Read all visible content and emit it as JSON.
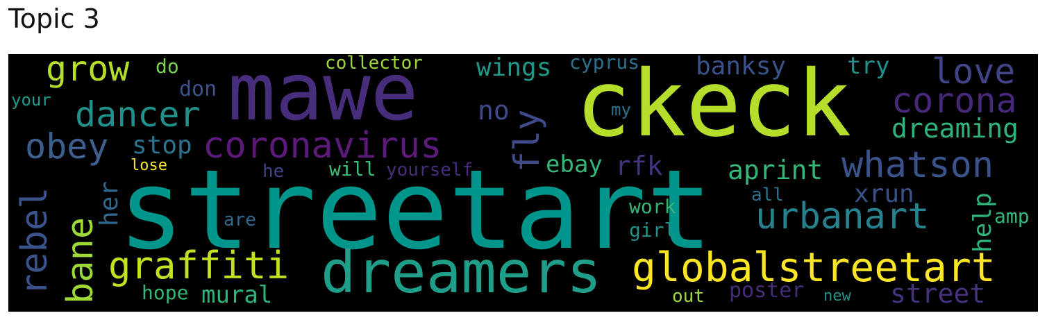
{
  "title": "Topic 3",
  "words": {
    "streetart": {
      "text": "streetart",
      "color": "#00968c"
    },
    "ckeck": {
      "text": "ckeck",
      "color": "#b5de2b"
    },
    "mawe": {
      "text": "mawe",
      "color": "#472d7b"
    },
    "dreamers": {
      "text": "dreamers",
      "color": "#1f9e89"
    },
    "globalstreetart": {
      "text": "globalstreetart",
      "color": "#fde725"
    },
    "coronavirus": {
      "text": "coronavirus",
      "color": "#5c1a7a"
    },
    "graffiti": {
      "text": "graffiti",
      "color": "#c5e021"
    },
    "urbanart": {
      "text": "urbanart",
      "color": "#26828e"
    },
    "whatson": {
      "text": "whatson",
      "color": "#3b528b"
    },
    "dancer": {
      "text": "dancer",
      "color": "#21918c"
    },
    "grow": {
      "text": "grow",
      "color": "#b5de2b"
    },
    "obey": {
      "text": "obey",
      "color": "#3e5f8e"
    },
    "corona": {
      "text": "corona",
      "color": "#482878"
    },
    "love": {
      "text": "love",
      "color": "#414487"
    },
    "dreaming": {
      "text": "dreaming",
      "color": "#2fb47c"
    },
    "aprint": {
      "text": "aprint",
      "color": "#35b779"
    },
    "rebel": {
      "text": "rebel",
      "color": "#3b528b"
    },
    "bane": {
      "text": "bane",
      "color": "#9fd938"
    },
    "fly": {
      "text": "fly",
      "color": "#3e4a89"
    },
    "wings": {
      "text": "wings",
      "color": "#1f9a8a"
    },
    "xrun": {
      "text": "xrun",
      "color": "#3b528b"
    },
    "street": {
      "text": "street",
      "color": "#46327e"
    },
    "banksy": {
      "text": "banksy",
      "color": "#3b528b"
    },
    "stop": {
      "text": "stop",
      "color": "#2c728e"
    },
    "ebay": {
      "text": "ebay",
      "color": "#35b779"
    },
    "rfk": {
      "text": "rfk",
      "color": "#46337e"
    },
    "mural": {
      "text": "mural",
      "color": "#2fb47c"
    },
    "her": {
      "text": "her",
      "color": "#31688e"
    },
    "help": {
      "text": "help",
      "color": "#2fb47c"
    },
    "no": {
      "text": "no",
      "color": "#3e4a89"
    },
    "try": {
      "text": "try",
      "color": "#21918c"
    },
    "don": {
      "text": "don",
      "color": "#3b528b"
    },
    "poster": {
      "text": "poster",
      "color": "#472c7a"
    },
    "cyprus": {
      "text": "cyprus",
      "color": "#2c728e"
    },
    "collector": {
      "text": "collector",
      "color": "#9fd938"
    },
    "will": {
      "text": "will",
      "color": "#3ebc73"
    },
    "yourself": {
      "text": "yourself",
      "color": "#472d7b"
    },
    "work": {
      "text": "work",
      "color": "#35b779"
    },
    "girl": {
      "text": "girl",
      "color": "#21918c"
    },
    "amp": {
      "text": "amp",
      "color": "#35b779"
    },
    "hope": {
      "text": "hope",
      "color": "#35b779"
    },
    "out": {
      "text": "out",
      "color": "#a0da39"
    },
    "do": {
      "text": "do",
      "color": "#7ad151"
    },
    "your": {
      "text": "your",
      "color": "#1f9a8a"
    },
    "my": {
      "text": "my",
      "color": "#2c728e"
    },
    "lose": {
      "text": "lose",
      "color": "#fde725"
    },
    "he": {
      "text": "he",
      "color": "#414487"
    },
    "are": {
      "text": "are",
      "color": "#31688e"
    },
    "all": {
      "text": "all",
      "color": "#2c728e"
    },
    "new": {
      "text": "new",
      "color": "#21918c"
    }
  }
}
